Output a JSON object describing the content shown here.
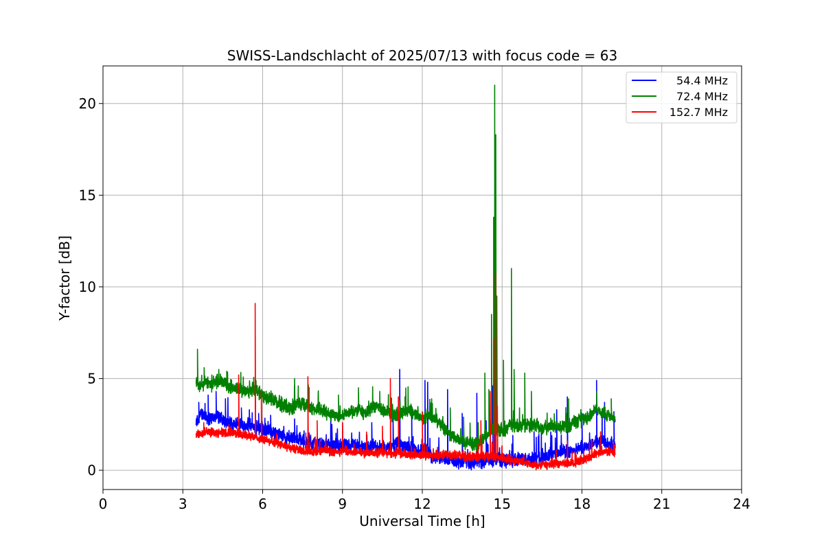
{
  "chart_data": {
    "type": "line",
    "title": "SWISS-Landschlacht of 2025/07/13 with focus code = 63",
    "xlabel": "Universal Time [h]",
    "ylabel": "Y-factor [dB]",
    "xlim": [
      0,
      24
    ],
    "ylim": [
      -1.05,
      22.05
    ],
    "xticks": [
      0,
      3,
      6,
      9,
      12,
      15,
      18,
      21,
      24
    ],
    "xtick_labels": [
      "0",
      "3",
      "6",
      "9",
      "12",
      "15",
      "18",
      "21",
      "24"
    ],
    "yticks": [
      0,
      5,
      10,
      15,
      20
    ],
    "ytick_labels": [
      "0",
      "5",
      "10",
      "15",
      "20"
    ],
    "grid": true,
    "legend_position": "top-right",
    "series": [
      {
        "name": "54.4 MHz",
        "color": "#0000ff",
        "points": [
          [
            3.5,
            2.6
          ],
          [
            3.7,
            3.1
          ],
          [
            3.9,
            2.9
          ],
          [
            4.1,
            2.8
          ],
          [
            4.3,
            3.0
          ],
          [
            4.5,
            2.7
          ],
          [
            4.7,
            2.6
          ],
          [
            4.9,
            2.5
          ],
          [
            5.1,
            2.6
          ],
          [
            5.3,
            2.4
          ],
          [
            5.5,
            2.5
          ],
          [
            5.7,
            2.3
          ],
          [
            5.9,
            2.3
          ],
          [
            6.1,
            2.2
          ],
          [
            6.3,
            2.1
          ],
          [
            6.5,
            2.0
          ],
          [
            6.7,
            1.9
          ],
          [
            6.9,
            1.8
          ],
          [
            7.1,
            1.8
          ],
          [
            7.3,
            1.7
          ],
          [
            7.5,
            1.6
          ],
          [
            7.7,
            1.5
          ],
          [
            7.9,
            1.5
          ],
          [
            8.1,
            1.4
          ],
          [
            8.3,
            1.4
          ],
          [
            8.5,
            1.4
          ],
          [
            8.7,
            1.3
          ],
          [
            8.9,
            1.4
          ],
          [
            9.1,
            1.3
          ],
          [
            9.3,
            1.3
          ],
          [
            9.5,
            1.4
          ],
          [
            9.7,
            1.3
          ],
          [
            9.9,
            1.2
          ],
          [
            10.1,
            1.3
          ],
          [
            10.3,
            1.3
          ],
          [
            10.5,
            1.2
          ],
          [
            10.7,
            1.3
          ],
          [
            10.9,
            1.3
          ],
          [
            11.1,
            1.5
          ],
          [
            11.3,
            1.3
          ],
          [
            11.5,
            1.2
          ],
          [
            11.7,
            1.2
          ],
          [
            11.9,
            1.0
          ],
          [
            12.1,
            1.1
          ],
          [
            12.3,
            0.8
          ],
          [
            12.5,
            0.7
          ],
          [
            12.7,
            0.6
          ],
          [
            12.9,
            0.6
          ],
          [
            13.1,
            0.6
          ],
          [
            13.3,
            0.5
          ],
          [
            13.5,
            0.5
          ],
          [
            13.7,
            0.5
          ],
          [
            13.9,
            0.4
          ],
          [
            14.1,
            0.5
          ],
          [
            14.3,
            0.5
          ],
          [
            14.5,
            0.6
          ],
          [
            14.7,
            0.6
          ],
          [
            14.9,
            0.6
          ],
          [
            15.1,
            0.5
          ],
          [
            15.3,
            0.5
          ],
          [
            15.5,
            0.6
          ],
          [
            15.7,
            0.7
          ],
          [
            15.9,
            0.6
          ],
          [
            16.1,
            0.6
          ],
          [
            16.3,
            0.7
          ],
          [
            16.5,
            0.8
          ],
          [
            16.7,
            0.8
          ],
          [
            16.9,
            0.9
          ],
          [
            17.1,
            0.9
          ],
          [
            17.3,
            1.0
          ],
          [
            17.5,
            1.0
          ],
          [
            17.7,
            1.1
          ],
          [
            17.9,
            1.2
          ],
          [
            18.1,
            1.3
          ],
          [
            18.3,
            1.4
          ],
          [
            18.5,
            1.5
          ],
          [
            18.7,
            1.6
          ],
          [
            18.9,
            1.5
          ],
          [
            19.1,
            1.4
          ],
          [
            19.25,
            1.3
          ]
        ],
        "spikes": [
          [
            3.6,
            3.7
          ],
          [
            3.95,
            4.1
          ],
          [
            4.25,
            4.3
          ],
          [
            4.6,
            3.9
          ],
          [
            5.2,
            3.4
          ],
          [
            5.5,
            3.3
          ],
          [
            5.85,
            3.1
          ],
          [
            6.3,
            3.0
          ],
          [
            7.2,
            2.8
          ],
          [
            8.6,
            2.5
          ],
          [
            9.0,
            2.6
          ],
          [
            10.1,
            2.6
          ],
          [
            10.9,
            2.9
          ],
          [
            11.15,
            5.5
          ],
          [
            11.6,
            3.5
          ],
          [
            12.1,
            4.9
          ],
          [
            12.2,
            4.8
          ],
          [
            12.95,
            4.4
          ],
          [
            13.5,
            3.1
          ],
          [
            14.05,
            4.2
          ],
          [
            14.4,
            2.7
          ],
          [
            14.65,
            4.6
          ],
          [
            15.4,
            1.9
          ],
          [
            16.2,
            2.1
          ],
          [
            17.05,
            3.3
          ],
          [
            17.45,
            4.0
          ],
          [
            18.0,
            3.1
          ],
          [
            18.55,
            4.9
          ],
          [
            18.85,
            3.7
          ],
          [
            19.2,
            3.2
          ]
        ]
      },
      {
        "name": "72.4 MHz",
        "color": "#008000",
        "points": [
          [
            3.5,
            4.7
          ],
          [
            3.7,
            4.6
          ],
          [
            3.9,
            4.8
          ],
          [
            4.1,
            4.7
          ],
          [
            4.3,
            4.9
          ],
          [
            4.5,
            4.8
          ],
          [
            4.7,
            4.6
          ],
          [
            4.9,
            4.5
          ],
          [
            5.1,
            4.4
          ],
          [
            5.3,
            4.3
          ],
          [
            5.5,
            4.3
          ],
          [
            5.7,
            4.4
          ],
          [
            5.9,
            4.2
          ],
          [
            6.1,
            4.0
          ],
          [
            6.3,
            3.9
          ],
          [
            6.5,
            3.7
          ],
          [
            6.7,
            3.6
          ],
          [
            6.9,
            3.5
          ],
          [
            7.1,
            3.4
          ],
          [
            7.3,
            3.6
          ],
          [
            7.5,
            3.7
          ],
          [
            7.7,
            3.5
          ],
          [
            7.9,
            3.3
          ],
          [
            8.1,
            3.3
          ],
          [
            8.3,
            3.2
          ],
          [
            8.5,
            3.1
          ],
          [
            8.7,
            3.0
          ],
          [
            8.9,
            2.9
          ],
          [
            9.1,
            3.1
          ],
          [
            9.3,
            3.2
          ],
          [
            9.5,
            3.3
          ],
          [
            9.7,
            3.2
          ],
          [
            9.9,
            3.1
          ],
          [
            10.1,
            3.3
          ],
          [
            10.3,
            3.5
          ],
          [
            10.5,
            3.3
          ],
          [
            10.7,
            3.2
          ],
          [
            10.9,
            3.0
          ],
          [
            11.1,
            3.0
          ],
          [
            11.3,
            3.2
          ],
          [
            11.5,
            3.3
          ],
          [
            11.7,
            3.1
          ],
          [
            11.9,
            3.0
          ],
          [
            12.1,
            2.9
          ],
          [
            12.3,
            3.0
          ],
          [
            12.5,
            2.8
          ],
          [
            12.7,
            2.5
          ],
          [
            12.9,
            2.2
          ],
          [
            13.1,
            1.9
          ],
          [
            13.3,
            1.7
          ],
          [
            13.5,
            1.6
          ],
          [
            13.7,
            1.5
          ],
          [
            13.9,
            1.4
          ],
          [
            14.1,
            1.4
          ],
          [
            14.3,
            1.8
          ],
          [
            14.5,
            2.0
          ],
          [
            14.7,
            2.3
          ],
          [
            14.9,
            2.2
          ],
          [
            15.1,
            2.2
          ],
          [
            15.3,
            2.5
          ],
          [
            15.5,
            2.4
          ],
          [
            15.7,
            2.5
          ],
          [
            15.9,
            2.5
          ],
          [
            16.1,
            2.4
          ],
          [
            16.3,
            2.5
          ],
          [
            16.5,
            2.3
          ],
          [
            16.7,
            2.3
          ],
          [
            16.9,
            2.4
          ],
          [
            17.1,
            2.3
          ],
          [
            17.3,
            2.5
          ],
          [
            17.5,
            2.4
          ],
          [
            17.7,
            2.6
          ],
          [
            17.9,
            2.7
          ],
          [
            18.1,
            2.8
          ],
          [
            18.3,
            3.0
          ],
          [
            18.5,
            3.3
          ],
          [
            18.7,
            3.2
          ],
          [
            18.9,
            3.1
          ],
          [
            19.1,
            2.9
          ],
          [
            19.25,
            2.8
          ]
        ],
        "spikes": [
          [
            3.55,
            6.6
          ],
          [
            3.8,
            5.6
          ],
          [
            4.35,
            5.5
          ],
          [
            4.65,
            5.4
          ],
          [
            5.75,
            4.9
          ],
          [
            7.2,
            5.0
          ],
          [
            7.7,
            4.6
          ],
          [
            8.85,
            4.1
          ],
          [
            9.6,
            4.5
          ],
          [
            10.4,
            4.3
          ],
          [
            10.8,
            4.2
          ],
          [
            11.35,
            4.0
          ],
          [
            12.35,
            3.9
          ],
          [
            13.05,
            3.4
          ],
          [
            13.55,
            2.9
          ],
          [
            14.1,
            2.6
          ],
          [
            14.35,
            5.3
          ],
          [
            14.5,
            4.4
          ],
          [
            14.6,
            8.5
          ],
          [
            14.68,
            13.8
          ],
          [
            14.72,
            21.0
          ],
          [
            14.76,
            18.3
          ],
          [
            14.8,
            9.5
          ],
          [
            15.05,
            6.0
          ],
          [
            15.35,
            11.0
          ],
          [
            15.45,
            5.5
          ],
          [
            15.85,
            5.3
          ],
          [
            16.1,
            4.3
          ],
          [
            17.5,
            3.9
          ],
          [
            18.55,
            4.3
          ],
          [
            19.1,
            3.9
          ]
        ]
      },
      {
        "name": "152.7 MHz",
        "color": "#ff0000",
        "points": [
          [
            3.5,
            2.0
          ],
          [
            3.7,
            2.0
          ],
          [
            3.9,
            2.1
          ],
          [
            4.1,
            2.1
          ],
          [
            4.3,
            2.0
          ],
          [
            4.5,
            2.1
          ],
          [
            4.7,
            2.0
          ],
          [
            4.9,
            2.1
          ],
          [
            5.1,
            2.0
          ],
          [
            5.3,
            1.9
          ],
          [
            5.5,
            1.9
          ],
          [
            5.7,
            1.8
          ],
          [
            5.9,
            1.7
          ],
          [
            6.1,
            1.7
          ],
          [
            6.3,
            1.6
          ],
          [
            6.5,
            1.5
          ],
          [
            6.7,
            1.4
          ],
          [
            6.9,
            1.3
          ],
          [
            7.1,
            1.2
          ],
          [
            7.3,
            1.2
          ],
          [
            7.5,
            1.1
          ],
          [
            7.7,
            1.1
          ],
          [
            7.9,
            1.0
          ],
          [
            8.1,
            1.0
          ],
          [
            8.3,
            1.1
          ],
          [
            8.5,
            1.0
          ],
          [
            8.7,
            1.0
          ],
          [
            8.9,
            1.0
          ],
          [
            9.1,
            1.1
          ],
          [
            9.3,
            1.0
          ],
          [
            9.5,
            1.0
          ],
          [
            9.7,
            1.0
          ],
          [
            9.9,
            0.9
          ],
          [
            10.1,
            1.0
          ],
          [
            10.3,
            0.9
          ],
          [
            10.5,
            1.0
          ],
          [
            10.7,
            0.9
          ],
          [
            10.9,
            0.9
          ],
          [
            11.1,
            1.0
          ],
          [
            11.3,
            0.9
          ],
          [
            11.5,
            0.8
          ],
          [
            11.7,
            0.9
          ],
          [
            11.9,
            0.8
          ],
          [
            12.1,
            0.8
          ],
          [
            12.3,
            0.8
          ],
          [
            12.5,
            0.8
          ],
          [
            12.7,
            0.8
          ],
          [
            12.9,
            0.9
          ],
          [
            13.1,
            0.8
          ],
          [
            13.3,
            0.8
          ],
          [
            13.5,
            0.8
          ],
          [
            13.7,
            0.7
          ],
          [
            13.9,
            0.8
          ],
          [
            14.1,
            0.7
          ],
          [
            14.3,
            0.8
          ],
          [
            14.5,
            0.8
          ],
          [
            14.7,
            0.7
          ],
          [
            14.9,
            0.7
          ],
          [
            15.1,
            0.6
          ],
          [
            15.3,
            0.6
          ],
          [
            15.5,
            0.5
          ],
          [
            15.7,
            0.5
          ],
          [
            15.9,
            0.4
          ],
          [
            16.1,
            0.3
          ],
          [
            16.3,
            0.3
          ],
          [
            16.5,
            0.3
          ],
          [
            16.7,
            0.3
          ],
          [
            16.9,
            0.3
          ],
          [
            17.1,
            0.3
          ],
          [
            17.3,
            0.4
          ],
          [
            17.5,
            0.4
          ],
          [
            17.7,
            0.4
          ],
          [
            17.9,
            0.5
          ],
          [
            18.1,
            0.6
          ],
          [
            18.3,
            0.7
          ],
          [
            18.5,
            0.9
          ],
          [
            18.7,
            1.0
          ],
          [
            18.9,
            1.1
          ],
          [
            19.1,
            1.0
          ],
          [
            19.25,
            0.9
          ]
        ],
        "spikes": [
          [
            5.1,
            5.2
          ],
          [
            5.72,
            9.1
          ],
          [
            5.95,
            4.3
          ],
          [
            7.7,
            5.1
          ],
          [
            8.05,
            2.7
          ],
          [
            9.0,
            2.6
          ],
          [
            10.5,
            2.4
          ],
          [
            10.8,
            5.0
          ],
          [
            11.1,
            4.0
          ],
          [
            12.0,
            3.2
          ],
          [
            14.2,
            2.7
          ],
          [
            14.55,
            4.3
          ],
          [
            14.68,
            7.2
          ],
          [
            14.75,
            10.7
          ],
          [
            14.82,
            3.5
          ],
          [
            17.45,
            1.6
          ],
          [
            18.7,
            2.1
          ]
        ]
      }
    ]
  }
}
